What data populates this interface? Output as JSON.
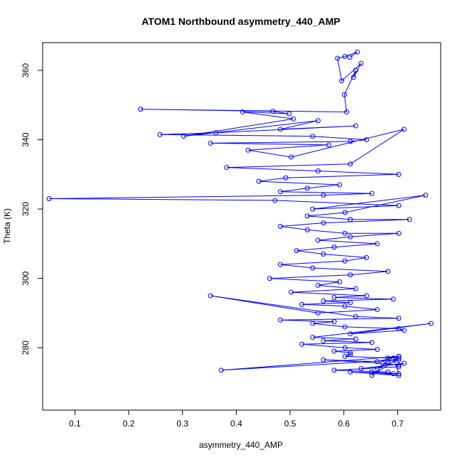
{
  "chart_data": {
    "type": "line",
    "title": "ATOM1 Northbound asymmetry_440_AMP",
    "xlabel": "asymmetry_440_AMP",
    "ylabel": "Theta (K)",
    "xlim": [
      0.04,
      0.78
    ],
    "ylim": [
      262,
      368
    ],
    "xticks": [
      0.1,
      0.2,
      0.3,
      0.4,
      0.5,
      0.6,
      0.7
    ],
    "xtick_labels": [
      "0.1",
      "0.2",
      "0.3",
      "0.4",
      "0.5",
      "0.6",
      "0.7"
    ],
    "yticks": [
      280,
      300,
      320,
      340,
      360
    ],
    "ytick_labels": [
      "280",
      "300",
      "320",
      "340",
      "360"
    ],
    "grid": false,
    "legend": "none",
    "series": [
      {
        "color": "#0000ff",
        "marker": "open-circle",
        "style": "line+points",
        "x": [
          0.611,
          0.625,
          0.602,
          0.588,
          0.596,
          0.632,
          0.618,
          0.622,
          0.601,
          0.605,
          0.222,
          0.468,
          0.498,
          0.412,
          0.506,
          0.302,
          0.552,
          0.482,
          0.622,
          0.362,
          0.258,
          0.542,
          0.642,
          0.612,
          0.352,
          0.572,
          0.422,
          0.502,
          0.712,
          0.612,
          0.382,
          0.552,
          0.702,
          0.492,
          0.442,
          0.592,
          0.532,
          0.482,
          0.652,
          0.562,
          0.052,
          0.472,
          0.702,
          0.542,
          0.752,
          0.602,
          0.532,
          0.612,
          0.722,
          0.562,
          0.482,
          0.532,
          0.602,
          0.702,
          0.612,
          0.552,
          0.662,
          0.582,
          0.512,
          0.562,
          0.642,
          0.602,
          0.482,
          0.542,
          0.682,
          0.612,
          0.462,
          0.592,
          0.552,
          0.622,
          0.502,
          0.642,
          0.582,
          0.692,
          0.562,
          0.612,
          0.522,
          0.602,
          0.662,
          0.552,
          0.352,
          0.622,
          0.702,
          0.482,
          0.582,
          0.542,
          0.602,
          0.702,
          0.712,
          0.612,
          0.762,
          0.542,
          0.622,
          0.562,
          0.652,
          0.522,
          0.602,
          0.662,
          0.582,
          0.612,
          0.612,
          0.602,
          0.682,
          0.702,
          0.662,
          0.562,
          0.672,
          0.702,
          0.712,
          0.632,
          0.702,
          0.582,
          0.682,
          0.692,
          0.652,
          0.702,
          0.612,
          0.702,
          0.692,
          0.702,
          0.372,
          0.702,
          0.662,
          0.682,
          0.702,
          0.652
        ],
        "y": [
          363.8,
          365.3,
          364.0,
          363.5,
          357.0,
          362.0,
          358.0,
          360.0,
          353.0,
          348.0,
          348.8,
          348.2,
          347.5,
          348.0,
          346.0,
          341.0,
          345.5,
          343.0,
          344.0,
          342.0,
          341.5,
          341.0,
          340.0,
          339.5,
          339.0,
          338.5,
          337.0,
          335.0,
          343.0,
          333.0,
          332.0,
          331.0,
          330.0,
          329.0,
          328.0,
          327.0,
          326.0,
          325.0,
          324.5,
          324.0,
          323.0,
          322.5,
          321.0,
          320.0,
          324.0,
          319.0,
          318.0,
          317.0,
          317.0,
          316.0,
          315.0,
          314.0,
          313.0,
          313.0,
          312.0,
          311.0,
          310.0,
          309.0,
          308.0,
          307.0,
          306.0,
          305.0,
          304.0,
          303.0,
          302.0,
          301.0,
          300.0,
          299.0,
          298.0,
          297.0,
          296.0,
          295.0,
          294.5,
          294.0,
          293.5,
          293.0,
          292.5,
          292.0,
          291.0,
          290.0,
          295.0,
          289.0,
          288.5,
          288.0,
          287.5,
          287.0,
          286.0,
          285.5,
          285.0,
          284.0,
          287.0,
          283.0,
          282.5,
          282.0,
          281.5,
          281.0,
          280.0,
          279.5,
          279.0,
          278.5,
          278.0,
          277.5,
          277.0,
          277.5,
          276.0,
          276.5,
          275.5,
          275.0,
          275.5,
          274.0,
          274.5,
          273.5,
          273.0,
          272.5,
          273.0,
          272.0,
          273.0,
          272.5,
          277.0,
          277.5,
          273.5,
          276.5,
          274.0,
          276.0,
          277.0,
          272.0
        ]
      }
    ]
  }
}
